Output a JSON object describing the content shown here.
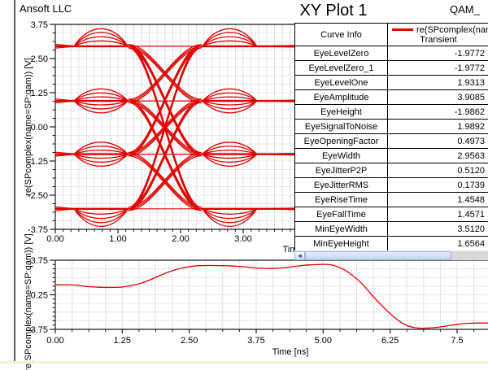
{
  "header": {
    "vendor": "Ansoft LLC",
    "title": "XY Plot 1",
    "corner": "QAM_"
  },
  "curve_table": {
    "col1_header": "Curve Info",
    "legend_label": "re(SPcomplex(nam",
    "legend_sublabel": "Transient",
    "rows": [
      {
        "name": "EyeLevelZero",
        "value": "-1.9772"
      },
      {
        "name": "EyeLevelZero_1",
        "value": "-1.9772"
      },
      {
        "name": "EyeLevelOne",
        "value": "1.9313"
      },
      {
        "name": "EyeAmplitude",
        "value": "3.9085"
      },
      {
        "name": "EyeHeight",
        "value": "-1.9862"
      },
      {
        "name": "EyeSignalToNoise",
        "value": "1.9892"
      },
      {
        "name": "EyeOpeningFactor",
        "value": "0.4973"
      },
      {
        "name": "EyeWidth",
        "value": "2.9563"
      },
      {
        "name": "EyeJitterP2P",
        "value": "0.5120"
      },
      {
        "name": "EyeJitterRMS",
        "value": "0.1739"
      },
      {
        "name": "EyeRiseTime",
        "value": "1.4548"
      },
      {
        "name": "EyeFallTime",
        "value": "1.4571"
      },
      {
        "name": "MinEyeWidth",
        "value": "3.5120"
      },
      {
        "name": "MinEyeHeight",
        "value": "1.6564"
      }
    ]
  },
  "scrollbar": {
    "orientation": "horizontal",
    "left_arrow": "◄"
  },
  "colors": {
    "trace": "#e00000",
    "axis": "#1a1a1a",
    "grid": "#e0e0e0",
    "grid_light": "#e7e7e7",
    "thumb": "#c3d3ef",
    "track": "#d8d8d8",
    "arrow_blue": "#2e5aa8",
    "strip": "#f2f2cc"
  },
  "chart_data": [
    {
      "type": "line",
      "name": "eye-diagram",
      "title": "XY Plot 1",
      "xlabel": "Time [ns]",
      "ylabel": "re(SPcomplex(name=SP:qam)) [V]",
      "xlim": [
        0,
        4.0
      ],
      "ylim": [
        -3.75,
        3.75
      ],
      "xticks": [
        "0.00",
        "1.00",
        "2.00",
        "3.00"
      ],
      "yticks": [
        "3.75",
        "2.50",
        "1.25",
        "0.00",
        "-1.25",
        "-2.50",
        "-3.75"
      ],
      "legend": [
        {
          "name": "re(SPcomplex(nam",
          "sub": "Transient",
          "color": "#e00000"
        }
      ],
      "legend_position": "table-overlay-right",
      "grid": true,
      "series_description": "4-level (16-QAM real part) eye diagram, levels approx +3, +1, -1, -3 V",
      "levels": [
        2.95,
        0.95,
        -1.0,
        -3.0
      ],
      "eye_crossing_times": [
        1.17,
        2.33
      ],
      "ripple_window_centers": [
        0.73,
        2.78
      ],
      "outer_ripple_amplitudes": [
        0.2,
        0.36,
        0.52,
        0.66
      ],
      "inner_ripple_amplitudes": [
        0.15,
        0.3,
        0.45
      ],
      "measurements_shown_in_table": true
    },
    {
      "type": "line",
      "name": "transient-waveform",
      "xlabel": "Time [ns]",
      "ylabel": "re(SPcomplex(name=SP:qam)) [V]",
      "xlim": [
        0,
        8.1
      ],
      "ylim": [
        -3.75,
        3.75
      ],
      "xticks": [
        "0.00",
        "1.25",
        "2.50",
        "3.75",
        "5.00",
        "6.25",
        "7.5"
      ],
      "yticks": [
        "3.75",
        "0.25",
        "-3.75"
      ],
      "grid": true,
      "x": [
        0,
        0.35,
        0.55,
        0.8,
        1.1,
        1.3,
        1.6,
        1.9,
        2.15,
        2.4,
        2.65,
        2.9,
        3.2,
        3.5,
        3.8,
        4.0,
        4.3,
        4.6,
        4.9,
        5.15,
        5.4,
        5.7,
        6.0,
        6.3,
        6.55,
        6.8,
        7.1,
        7.4,
        7.7,
        8.1
      ],
      "y": [
        1.08,
        1.06,
        0.92,
        0.82,
        0.8,
        0.88,
        1.25,
        1.95,
        2.55,
        2.95,
        3.15,
        3.18,
        3.15,
        3.05,
        2.88,
        2.85,
        2.95,
        3.18,
        3.28,
        3.25,
        2.7,
        1.35,
        -0.6,
        -2.3,
        -3.3,
        -3.62,
        -3.55,
        -3.3,
        -3.1,
        -3.05
      ]
    }
  ]
}
